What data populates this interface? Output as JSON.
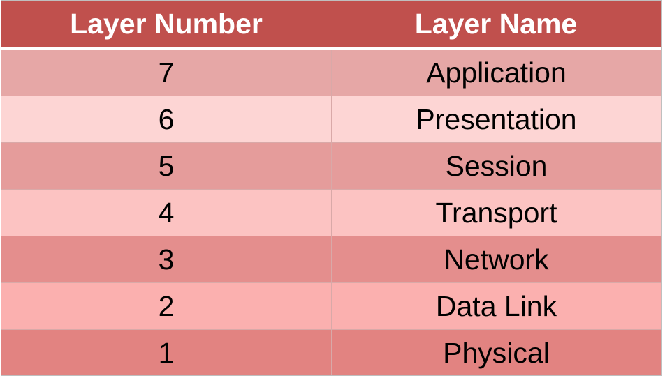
{
  "table": {
    "headers": {
      "layer_number": "Layer Number",
      "layer_name": "Layer Name"
    },
    "rows": [
      {
        "number": "7",
        "name": "Application",
        "color": "#e6a7a6"
      },
      {
        "number": "6",
        "name": "Presentation",
        "color": "#fdd5d4"
      },
      {
        "number": "5",
        "name": "Session",
        "color": "#e59c9b"
      },
      {
        "number": "4",
        "name": "Transport",
        "color": "#fcc3c2"
      },
      {
        "number": "3",
        "name": "Network",
        "color": "#e48e8d"
      },
      {
        "number": "2",
        "name": "Data Link",
        "color": "#fbb0af"
      },
      {
        "number": "1",
        "name": "Physical",
        "color": "#e28381"
      }
    ],
    "header_color": "#c0504d"
  }
}
